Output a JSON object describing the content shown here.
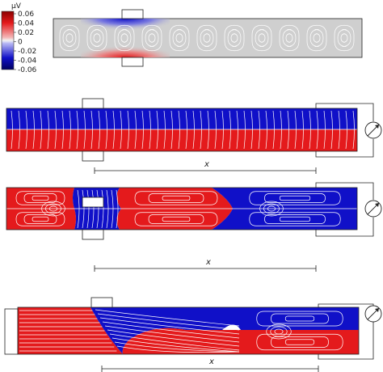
{
  "colorbar": {
    "unit": "µV",
    "ticks": [
      "0.06",
      "0.04",
      "0.02",
      "0",
      "-0.02",
      "-0.04",
      "-0.06"
    ]
  },
  "panels": [
    {
      "id": "panel-1",
      "x_label": ""
    },
    {
      "id": "panel-2",
      "x_label": "x"
    },
    {
      "id": "panel-3",
      "x_label": "x"
    },
    {
      "id": "panel-4",
      "x_label": "x"
    }
  ],
  "colors": {
    "positive": "#e41a1c",
    "negative": "#1010c8",
    "neutral": "#cfcfcf",
    "streamline": "#ffffff",
    "outline": "#222222"
  },
  "icons": [
    "voltmeter-icon"
  ]
}
